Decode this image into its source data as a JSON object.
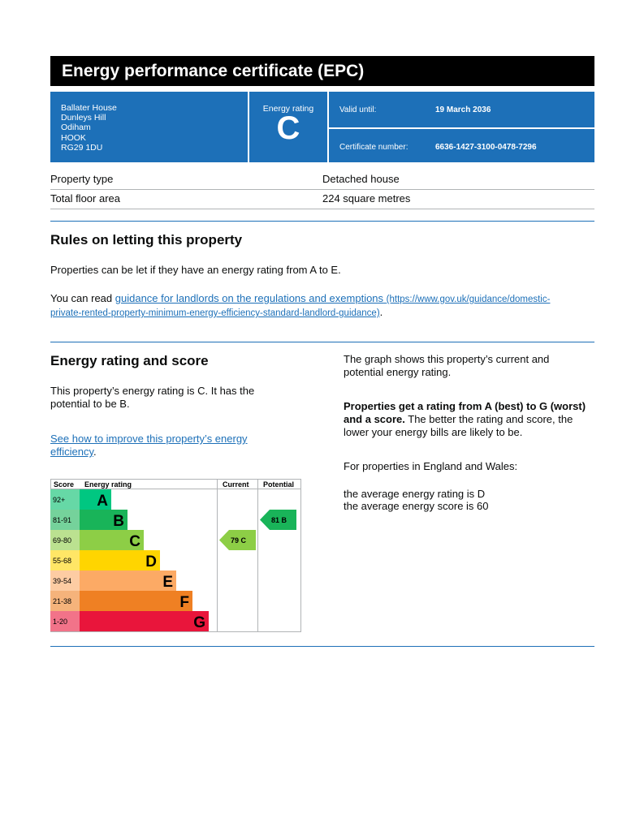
{
  "title": "Energy performance certificate (EPC)",
  "address": [
    "Ballater House",
    "Dunleys Hill",
    "Odiham",
    "HOOK",
    "RG29 1DU"
  ],
  "energy_rating": {
    "label": "Energy rating",
    "value": "C"
  },
  "valid_until": {
    "label": "Valid until:",
    "value": "19 March 2036"
  },
  "certificate_number": {
    "label": "Certificate number:",
    "value": "6636-1427-3100-0478-7296"
  },
  "property": [
    {
      "k": "Property type",
      "v": "Detached house"
    },
    {
      "k": "Total floor area",
      "v": "224 square metres"
    }
  ],
  "letting": {
    "heading": "Rules on letting this property",
    "p1": "Properties can be let if they have an energy rating from A to E.",
    "p2_prefix": "You can read ",
    "link": "guidance for landlords on the regulations and exemptions",
    "link_url": "(https://www.gov.uk/guidance/domestic-private-rented-property-minimum-energy-efficiency-standard-landlord-guidance)",
    "p2_suffix": "."
  },
  "score": {
    "heading": "Energy rating and score",
    "p1": "This property’s energy rating is C. It has the potential to be B.",
    "link": "See how to improve this property’s energy efficiency",
    "link_suffix": ".",
    "r1": "The graph shows this property’s current and potential energy rating.",
    "r2_bold": "Properties get a rating from A (best) to G (worst) and a score.",
    "r2": " The better the rating and score, the lower your energy bills are likely to be.",
    "r3": "For properties in England and Wales:",
    "r4": "the average energy rating is D",
    "r5": "the average energy score is 60"
  },
  "chart_data": {
    "type": "table",
    "headers": [
      "Score",
      "Energy rating",
      "Current",
      "Potential"
    ],
    "bands": [
      {
        "score": "92+",
        "letter": "A",
        "color": "#00c781",
        "light": "#66d8a6"
      },
      {
        "score": "81-91",
        "letter": "B",
        "color": "#19b459",
        "light": "#75d29b"
      },
      {
        "score": "69-80",
        "letter": "C",
        "color": "#8dce46",
        "light": "#bbe190"
      },
      {
        "score": "55-68",
        "letter": "D",
        "color": "#ffd500",
        "light": "#ffe666"
      },
      {
        "score": "39-54",
        "letter": "E",
        "color": "#fcaa65",
        "light": "#fdcca3"
      },
      {
        "score": "21-38",
        "letter": "F",
        "color": "#ef8023",
        "light": "#f5b37b"
      },
      {
        "score": "1-20",
        "letter": "G",
        "color": "#e9153b",
        "light": "#f27389"
      }
    ],
    "current": {
      "score": 79,
      "letter": "C",
      "label": "79  C"
    },
    "potential": {
      "score": 81,
      "letter": "B",
      "label": "81  B"
    }
  }
}
